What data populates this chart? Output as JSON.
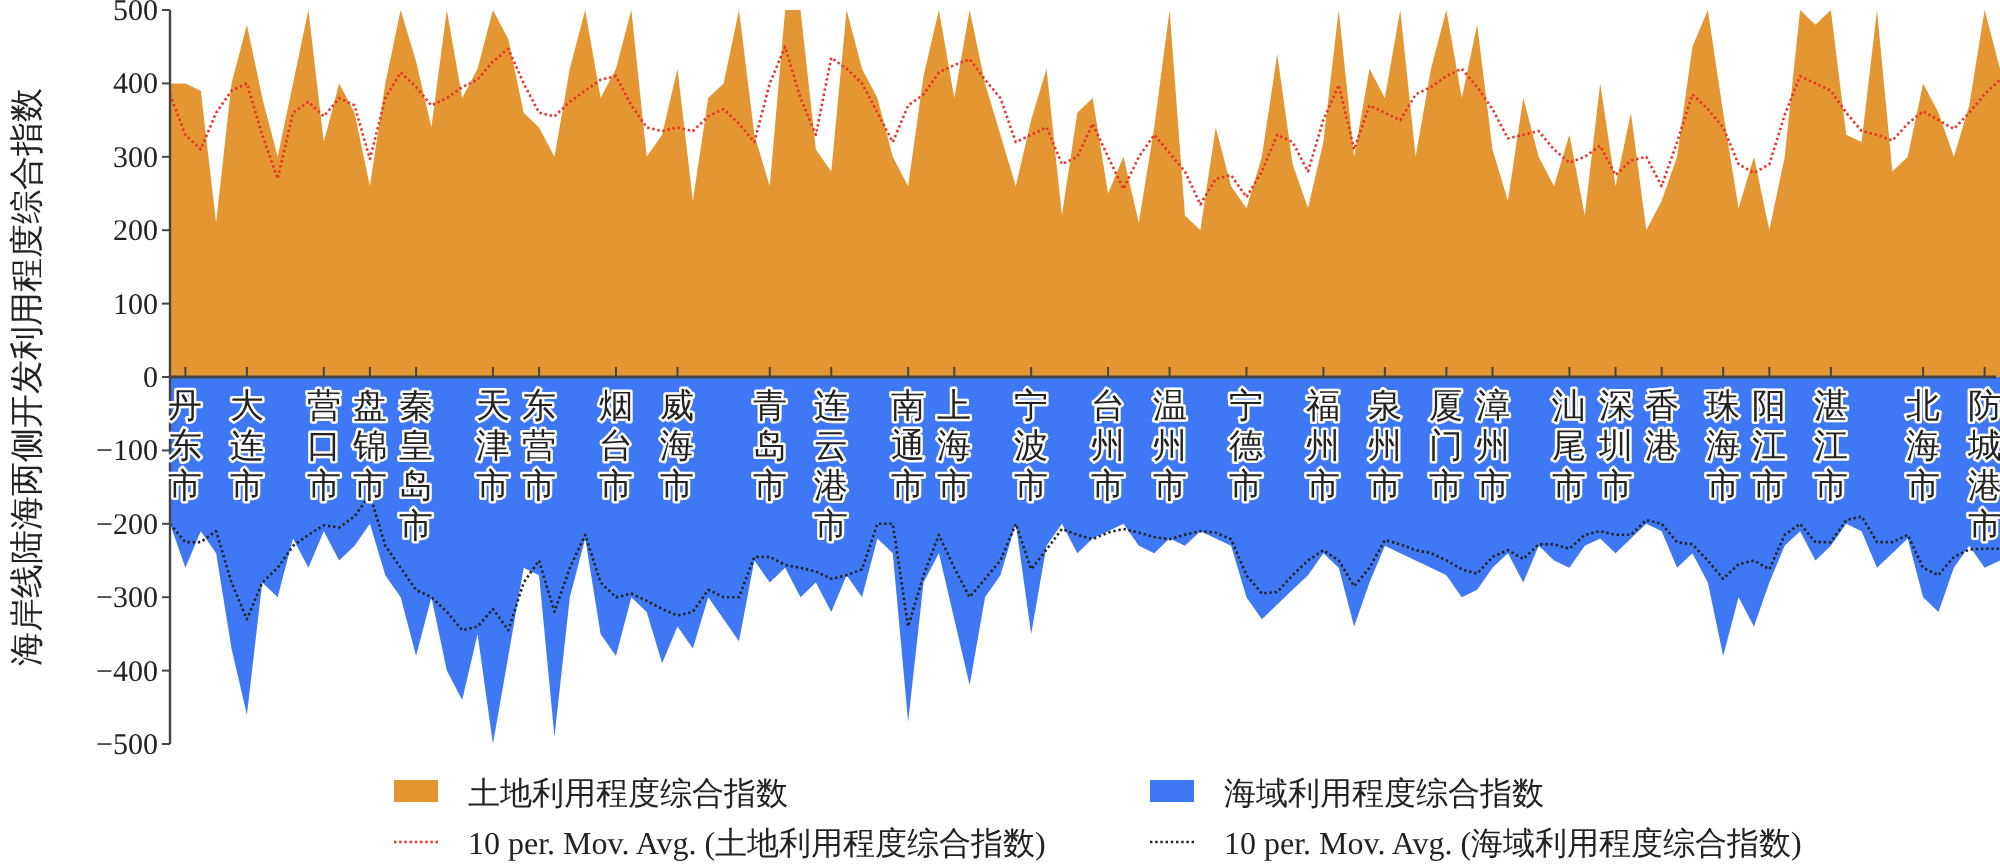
{
  "chart_data": {
    "type": "area",
    "ylabel": "海岸线陆海两侧开发利用程度综合指数",
    "categories": [
      null,
      "丹东市",
      null,
      null,
      null,
      "大连市",
      null,
      null,
      null,
      null,
      "营口市",
      null,
      null,
      "盘锦市",
      null,
      null,
      "秦皇岛市",
      null,
      null,
      null,
      null,
      "天津市",
      null,
      null,
      "东营市",
      null,
      null,
      null,
      null,
      "烟台市",
      null,
      null,
      null,
      "威海市",
      null,
      null,
      null,
      null,
      null,
      "青岛市",
      null,
      null,
      null,
      "连云港市",
      null,
      null,
      null,
      null,
      "南通市",
      null,
      null,
      "上海市",
      null,
      null,
      null,
      null,
      "宁波市",
      null,
      null,
      null,
      null,
      "台州市",
      null,
      null,
      null,
      "温州市",
      null,
      null,
      null,
      null,
      "宁德市",
      null,
      null,
      null,
      null,
      "福州市",
      null,
      null,
      null,
      "泉州市",
      null,
      null,
      null,
      "厦门市",
      null,
      null,
      "漳州市",
      null,
      null,
      null,
      null,
      "汕尾市",
      null,
      null,
      "深圳市",
      null,
      null,
      "香港",
      null,
      null,
      null,
      "珠海市",
      null,
      null,
      "阳江市",
      null,
      null,
      null,
      "湛江市",
      null,
      null,
      null,
      null,
      null,
      "北海市",
      null,
      null,
      null,
      "防城港市",
      null
    ],
    "series": [
      {
        "name": "土地利用程度综合指数",
        "color": "#e39632",
        "values": [
          400,
          400,
          390,
          210,
          400,
          480,
          380,
          300,
          400,
          500,
          320,
          400,
          360,
          260,
          400,
          500,
          430,
          340,
          500,
          380,
          420,
          500,
          460,
          360,
          340,
          300,
          420,
          500,
          380,
          420,
          500,
          300,
          330,
          420,
          240,
          380,
          400,
          500,
          330,
          260,
          500,
          500,
          310,
          280,
          500,
          420,
          380,
          300,
          260,
          410,
          500,
          380,
          500,
          400,
          330,
          260,
          350,
          420,
          220,
          360,
          380,
          250,
          300,
          210,
          340,
          500,
          220,
          200,
          340,
          260,
          230,
          300,
          440,
          290,
          230,
          320,
          500,
          300,
          420,
          380,
          500,
          300,
          420,
          500,
          380,
          480,
          310,
          240,
          380,
          300,
          260,
          330,
          220,
          400,
          260,
          360,
          200,
          240,
          300,
          450,
          500,
          360,
          230,
          300,
          200,
          300,
          500,
          480,
          500,
          330,
          320,
          500,
          280,
          300,
          400,
          360,
          300,
          370,
          500,
          420
        ]
      },
      {
        "name": "海域利用程度综合指数",
        "color": "#3f78f5",
        "values": [
          -200,
          -260,
          -210,
          -240,
          -370,
          -460,
          -280,
          -300,
          -220,
          -260,
          -210,
          -250,
          -230,
          -200,
          -270,
          -300,
          -380,
          -300,
          -400,
          -440,
          -350,
          -500,
          -380,
          -260,
          -270,
          -490,
          -300,
          -220,
          -350,
          -380,
          -300,
          -320,
          -390,
          -340,
          -370,
          -300,
          -330,
          -360,
          -250,
          -280,
          -260,
          -300,
          -280,
          -320,
          -270,
          -300,
          -220,
          -240,
          -470,
          -280,
          -240,
          -330,
          -420,
          -300,
          -270,
          -200,
          -350,
          -230,
          -200,
          -240,
          -220,
          -210,
          -200,
          -230,
          -240,
          -220,
          -230,
          -210,
          -220,
          -230,
          -300,
          -330,
          -310,
          -290,
          -270,
          -240,
          -260,
          -340,
          -280,
          -230,
          -240,
          -250,
          -260,
          -270,
          -300,
          -290,
          -260,
          -240,
          -280,
          -230,
          -250,
          -260,
          -230,
          -220,
          -240,
          -220,
          -200,
          -210,
          -260,
          -240,
          -280,
          -380,
          -300,
          -340,
          -280,
          -230,
          -210,
          -250,
          -230,
          -200,
          -210,
          -260,
          -240,
          -220,
          -300,
          -320,
          -260,
          -230,
          -260,
          -250
        ]
      },
      {
        "name": "10 per. Mov. Avg. (土地利用程度综合指数)",
        "type": "line",
        "line_style": "dotted",
        "color": "#e8322a",
        "values": [
          385,
          330,
          310,
          360,
          390,
          400,
          330,
          270,
          360,
          375,
          355,
          380,
          370,
          297,
          380,
          415,
          395,
          370,
          380,
          395,
          405,
          430,
          447,
          400,
          360,
          355,
          375,
          390,
          405,
          410,
          370,
          340,
          335,
          340,
          335,
          355,
          365,
          345,
          320,
          400,
          450,
          380,
          330,
          435,
          420,
          400,
          360,
          320,
          370,
          385,
          415,
          425,
          433,
          405,
          380,
          320,
          330,
          340,
          290,
          300,
          345,
          300,
          256,
          300,
          330,
          305,
          280,
          235,
          270,
          275,
          245,
          280,
          330,
          320,
          280,
          350,
          398,
          310,
          370,
          360,
          350,
          385,
          395,
          410,
          420,
          395,
          365,
          325,
          330,
          335,
          310,
          292,
          300,
          315,
          275,
          295,
          300,
          260,
          320,
          385,
          365,
          340,
          290,
          278,
          290,
          357,
          410,
          400,
          390,
          360,
          335,
          330,
          322,
          345,
          362,
          350,
          338,
          360,
          385,
          405
        ]
      },
      {
        "name": "10 per. Mov. Avg. (海域利用程度综合指数)",
        "type": "line",
        "line_style": "dotted",
        "color": "#222222",
        "values": [
          -200,
          -225,
          -225,
          -210,
          -280,
          -330,
          -280,
          -260,
          -230,
          -215,
          -202,
          -205,
          -190,
          -160,
          -230,
          -260,
          -290,
          -300,
          -320,
          -345,
          -340,
          -316,
          -345,
          -280,
          -250,
          -320,
          -260,
          -215,
          -280,
          -300,
          -295,
          -305,
          -316,
          -325,
          -320,
          -290,
          -300,
          -300,
          -245,
          -245,
          -256,
          -260,
          -265,
          -275,
          -270,
          -262,
          -200,
          -200,
          -340,
          -270,
          -215,
          -260,
          -300,
          -275,
          -250,
          -200,
          -262,
          -235,
          -207,
          -215,
          -221,
          -212,
          -207,
          -212,
          -218,
          -221,
          -215,
          -210,
          -212,
          -221,
          -270,
          -295,
          -293,
          -270,
          -250,
          -236,
          -250,
          -285,
          -260,
          -222,
          -228,
          -236,
          -240,
          -250,
          -262,
          -268,
          -245,
          -236,
          -248,
          -228,
          -228,
          -234,
          -215,
          -210,
          -215,
          -215,
          -195,
          -200,
          -225,
          -228,
          -250,
          -275,
          -255,
          -250,
          -262,
          -215,
          -200,
          -225,
          -225,
          -195,
          -190,
          -225,
          -225,
          -215,
          -260,
          -270,
          -245,
          -235,
          -234,
          -234
        ]
      }
    ],
    "ylim": [
      -500,
      500
    ],
    "yticks": [
      -500,
      -400,
      -300,
      -200,
      -100,
      0,
      100,
      200,
      300,
      400,
      500
    ],
    "legend": "bottom",
    "marker": "none"
  }
}
